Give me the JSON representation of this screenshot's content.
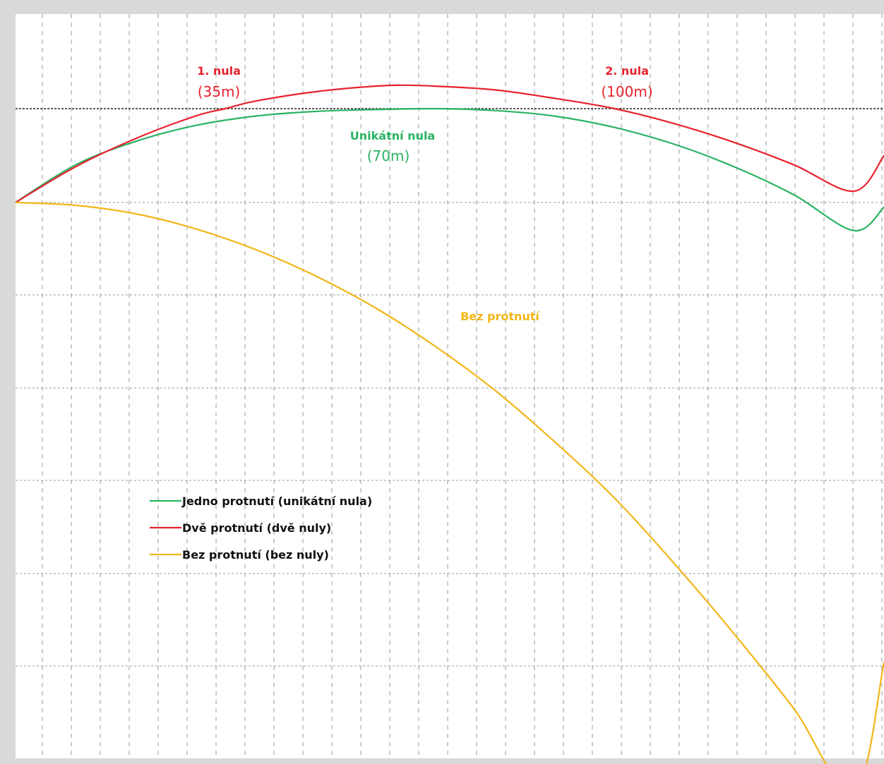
{
  "chart_data": {
    "type": "line",
    "title": "",
    "xlabel": "",
    "ylabel": "",
    "grid": true,
    "legend_placement": "lower-left",
    "x_unit": "m",
    "x_range": [
      0,
      145
    ],
    "sight_line_y": 0,
    "series": [
      {
        "name": "Jedno protnutí (unikátní nula)",
        "color": "#2ab364",
        "x": [
          0,
          10,
          20,
          30,
          40,
          50,
          60,
          70,
          80,
          90,
          100,
          110,
          120,
          130,
          140,
          145
        ],
        "y": [
          -1.0,
          -0.6,
          -0.35,
          -0.18,
          -0.08,
          -0.03,
          -0.01,
          0.0,
          -0.02,
          -0.08,
          -0.2,
          -0.38,
          -0.62,
          -0.92,
          -1.3,
          -1.05
        ]
      },
      {
        "name": "Dvě protnutí  (dvě nuly)",
        "color": "#e8222e",
        "x": [
          0,
          10,
          20,
          30,
          35,
          40,
          50,
          60,
          65,
          70,
          80,
          90,
          100,
          110,
          120,
          130,
          140,
          145
        ],
        "y": [
          -1.0,
          -0.62,
          -0.32,
          -0.08,
          0.0,
          0.08,
          0.18,
          0.24,
          0.25,
          0.24,
          0.2,
          0.11,
          0.0,
          -0.16,
          -0.36,
          -0.6,
          -0.88,
          -0.5
        ]
      },
      {
        "name": "Bez protnutí (bez nuly)",
        "color": "#f2b619",
        "x": [
          0,
          10,
          20,
          30,
          40,
          50,
          60,
          70,
          80,
          90,
          100,
          110,
          120,
          130,
          140,
          145
        ],
        "y": [
          -1.0,
          -1.03,
          -1.12,
          -1.28,
          -1.5,
          -1.78,
          -2.12,
          -2.53,
          -3.0,
          -3.55,
          -4.15,
          -4.85,
          -5.6,
          -6.4,
          -7.3,
          -5.9
        ]
      }
    ],
    "annotations": [
      {
        "id": "zero1",
        "line1": "1. nula",
        "line2": "(35m)",
        "color": "#e8222e",
        "x": 35,
        "y": 0.0
      },
      {
        "id": "zero2",
        "line1": "2. nula",
        "line2": "(100m)",
        "color": "#e8222e",
        "x": 100,
        "y": 0.0
      },
      {
        "id": "unique",
        "line1": "Unikátní nula",
        "line2": "(70m)",
        "color": "#2ab364",
        "x": 70,
        "y": 0.0
      },
      {
        "id": "nocross",
        "line1": "Bez protnutí",
        "line2": "",
        "color": "#f2b619",
        "x": 82,
        "y": -1.95
      }
    ],
    "legend": [
      {
        "label": "Jedno protnutí (unikátní nula)",
        "color": "#2ab364"
      },
      {
        "label": "Dvě protnutí  (dvě nuly)",
        "color": "#e8222e"
      },
      {
        "label": "Bez protnutí (bez nuly)",
        "color": "#f2b619"
      }
    ]
  }
}
